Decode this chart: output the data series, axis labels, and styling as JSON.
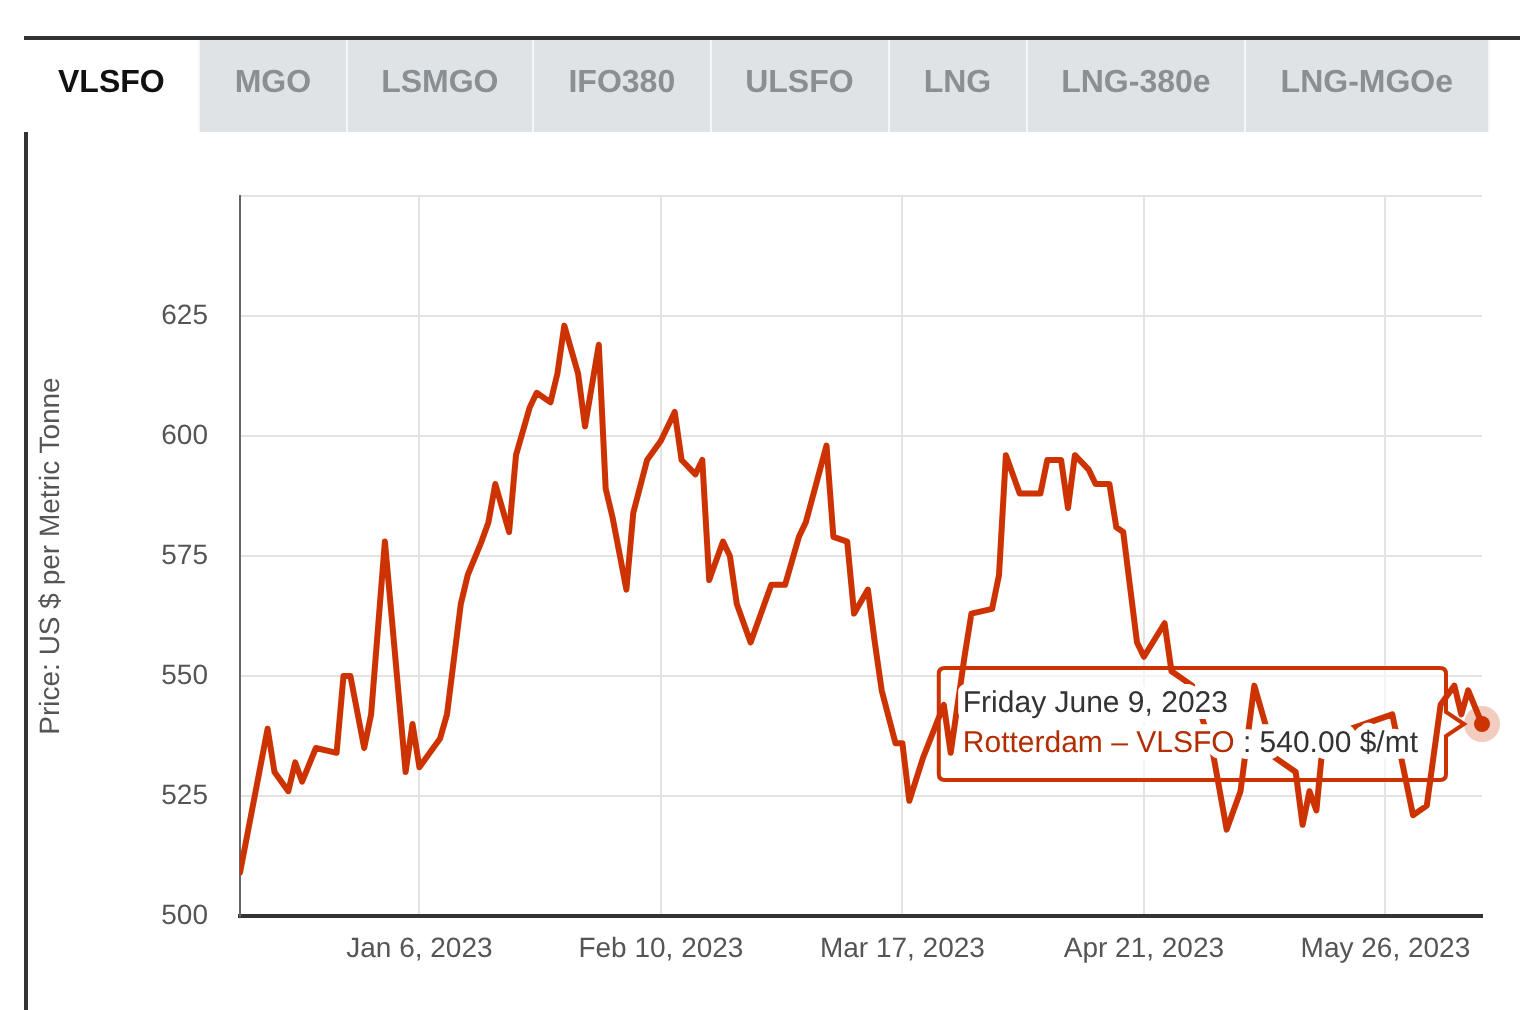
{
  "chart_data": {
    "type": "line",
    "ylabel": "Price: US $ per Metric Tonne",
    "annotations": [
      "VLSFO",
      "MGO",
      "LSMGO",
      "IFO380",
      "ULSFO",
      "LNG",
      "LNG-380e",
      "LNG-MGOe",
      "Friday June 9, 2023",
      "Rotterdam – VLSFO : 540.00 $/mt"
    ],
    "x": [
      "2022-12-11",
      "2022-12-15",
      "2022-12-16",
      "2022-12-18",
      "2022-12-19",
      "2022-12-20",
      "2022-12-22",
      "2022-12-25",
      "2022-12-26",
      "2022-12-27",
      "2022-12-29",
      "2022-12-30",
      "2023-01-01",
      "2023-01-04",
      "2023-01-05",
      "2023-01-06",
      "2023-01-09",
      "2023-01-10",
      "2023-01-12",
      "2023-01-13",
      "2023-01-15",
      "2023-01-16",
      "2023-01-17",
      "2023-01-19",
      "2023-01-20",
      "2023-01-22",
      "2023-01-23",
      "2023-01-25",
      "2023-01-26",
      "2023-01-27",
      "2023-01-29",
      "2023-01-30",
      "2023-02-01",
      "2023-02-02",
      "2023-02-03",
      "2023-02-05",
      "2023-02-06",
      "2023-02-08",
      "2023-02-10",
      "2023-02-12",
      "2023-02-13",
      "2023-02-15",
      "2023-02-16",
      "2023-02-17",
      "2023-02-19",
      "2023-02-20",
      "2023-02-21",
      "2023-02-23",
      "2023-02-25",
      "2023-02-26",
      "2023-02-28",
      "2023-03-02",
      "2023-03-03",
      "2023-03-06",
      "2023-03-07",
      "2023-03-09",
      "2023-03-10",
      "2023-03-12",
      "2023-03-13",
      "2023-03-14",
      "2023-03-16",
      "2023-03-17",
      "2023-03-18",
      "2023-03-20",
      "2023-03-23",
      "2023-03-24",
      "2023-03-26",
      "2023-03-27",
      "2023-03-30",
      "2023-03-31",
      "2023-04-01",
      "2023-04-03",
      "2023-04-06",
      "2023-04-07",
      "2023-04-09",
      "2023-04-10",
      "2023-04-11",
      "2023-04-13",
      "2023-04-14",
      "2023-04-16",
      "2023-04-17",
      "2023-04-18",
      "2023-04-20",
      "2023-04-21",
      "2023-04-24",
      "2023-04-25",
      "2023-04-28",
      "2023-05-01",
      "2023-05-03",
      "2023-05-05",
      "2023-05-07",
      "2023-05-10",
      "2023-05-13",
      "2023-05-14",
      "2023-05-15",
      "2023-05-16",
      "2023-05-17",
      "2023-05-27",
      "2023-05-30",
      "2023-06-01",
      "2023-06-03",
      "2023-06-05",
      "2023-06-06",
      "2023-06-07",
      "2023-06-09"
    ],
    "series": [
      {
        "color": "#cc3300",
        "values": [
          509,
          539,
          530,
          526,
          532,
          528,
          535,
          534,
          550,
          550,
          535,
          542,
          578,
          530,
          540,
          531,
          537,
          542,
          565,
          571,
          578,
          582,
          590,
          580,
          596,
          606,
          609,
          607,
          613,
          623,
          613,
          602,
          619,
          589,
          583,
          568,
          584,
          595,
          599,
          605,
          595,
          592,
          595,
          570,
          578,
          575,
          565,
          557,
          565,
          569,
          569,
          579,
          582,
          598,
          579,
          578,
          563,
          568,
          557,
          547,
          536,
          536,
          524,
          533,
          544,
          534,
          554,
          563,
          564,
          571,
          596,
          588,
          588,
          595,
          595,
          585,
          596,
          593,
          590,
          590,
          581,
          580,
          557,
          554,
          561,
          551,
          548,
          534,
          518,
          526,
          548,
          533,
          530,
          519,
          526,
          522,
          537,
          542,
          521,
          523,
          544,
          548,
          542,
          547,
          540
        ]
      }
    ],
    "xlim": [
      "2022-12-11",
      "2023-06-09"
    ],
    "xticks": [
      {
        "value": "2023-01-06",
        "label": "Jan 6, 2023"
      },
      {
        "value": "2023-02-10",
        "label": "Feb 10, 2023"
      },
      {
        "value": "2023-03-17",
        "label": "Mar 17, 2023"
      },
      {
        "value": "2023-04-21",
        "label": "Apr 21, 2023"
      },
      {
        "value": "2023-05-26",
        "label": "May 26, 2023"
      }
    ],
    "ylim": [
      500,
      650
    ],
    "yticks": [
      500,
      525,
      550,
      575,
      600,
      625,
      {
        "value": 650,
        "label": null
      }
    ],
    "grid": true,
    "legend": false,
    "marker": "none",
    "line_style": "solid"
  }
}
